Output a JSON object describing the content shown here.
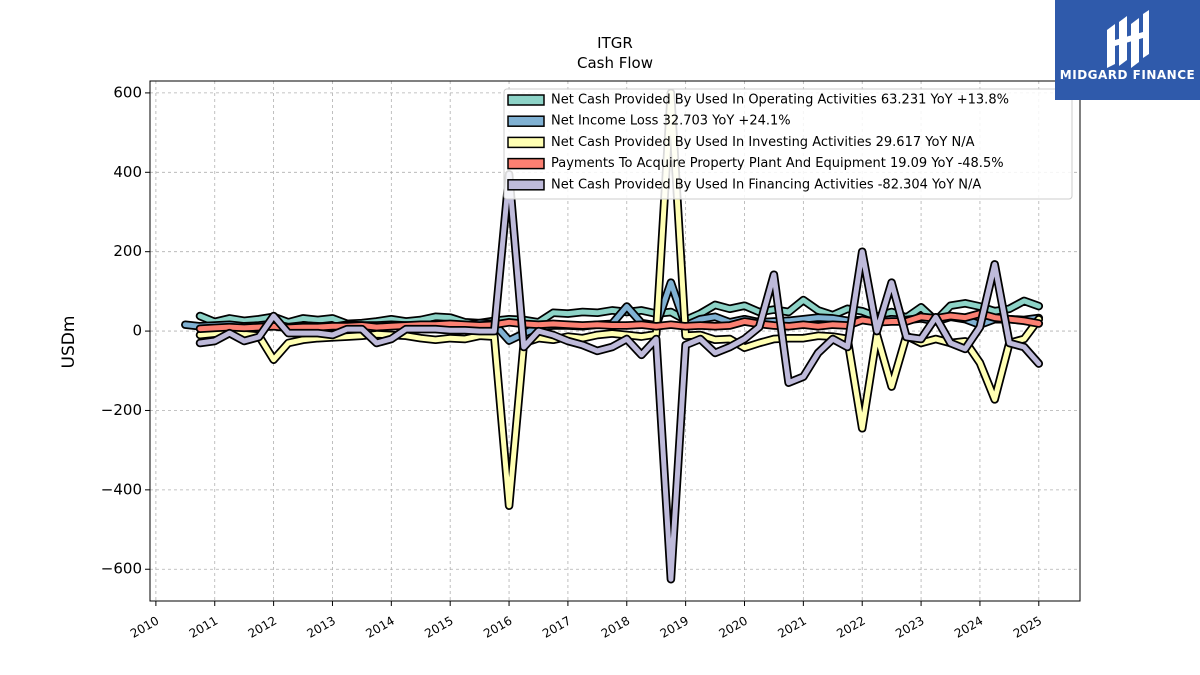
{
  "brand": {
    "name": "MIDGARD FINANCE",
    "background": "#2f5aab"
  },
  "chart_data": {
    "type": "area",
    "title": "ITGR",
    "subtitle": "Cash Flow",
    "ylabel": "USDm",
    "xlim": [
      2009.9,
      2025.7
    ],
    "ylim": [
      -680,
      630
    ],
    "yticks": [
      600,
      400,
      200,
      0,
      -200,
      -400,
      -600
    ],
    "ytick_labels": [
      "600",
      "400",
      "200",
      "0",
      "−200",
      "−400",
      "−600"
    ],
    "xticks": [
      2010,
      2011,
      2012,
      2013,
      2014,
      2015,
      2016,
      2017,
      2018,
      2019,
      2020,
      2021,
      2022,
      2023,
      2024,
      2025
    ],
    "grid": true,
    "legend_position": "top-right",
    "series": [
      {
        "name": "Net Cash Provided By Used In Operating Activities  63.231 YoY +13.8%",
        "color": "#8dd3c7",
        "points": [
          [
            2010.75,
            38
          ],
          [
            2011.0,
            23
          ],
          [
            2011.25,
            32
          ],
          [
            2011.5,
            26
          ],
          [
            2011.75,
            30
          ],
          [
            2012.0,
            36
          ],
          [
            2012.25,
            22
          ],
          [
            2012.5,
            32
          ],
          [
            2012.75,
            28
          ],
          [
            2013.0,
            32
          ],
          [
            2013.25,
            18
          ],
          [
            2013.5,
            20
          ],
          [
            2013.75,
            24
          ],
          [
            2014.0,
            30
          ],
          [
            2014.25,
            24
          ],
          [
            2014.5,
            28
          ],
          [
            2014.75,
            36
          ],
          [
            2015.0,
            34
          ],
          [
            2015.25,
            22
          ],
          [
            2015.5,
            20
          ],
          [
            2015.75,
            26
          ],
          [
            2016.0,
            30
          ],
          [
            2016.25,
            28
          ],
          [
            2016.5,
            22
          ],
          [
            2016.75,
            46
          ],
          [
            2017.0,
            44
          ],
          [
            2017.25,
            48
          ],
          [
            2017.5,
            46
          ],
          [
            2017.75,
            52
          ],
          [
            2018.0,
            48
          ],
          [
            2018.25,
            52
          ],
          [
            2018.5,
            44
          ],
          [
            2018.75,
            48
          ],
          [
            2019.0,
            28
          ],
          [
            2019.25,
            44
          ],
          [
            2019.5,
            66
          ],
          [
            2019.75,
            56
          ],
          [
            2020.0,
            64
          ],
          [
            2020.25,
            48
          ],
          [
            2020.5,
            54
          ],
          [
            2020.75,
            48
          ],
          [
            2021.0,
            78
          ],
          [
            2021.25,
            52
          ],
          [
            2021.5,
            40
          ],
          [
            2021.75,
            56
          ],
          [
            2022.0,
            50
          ],
          [
            2022.25,
            36
          ],
          [
            2022.5,
            48
          ],
          [
            2022.75,
            34
          ],
          [
            2023.0,
            60
          ],
          [
            2023.25,
            26
          ],
          [
            2023.5,
            64
          ],
          [
            2023.75,
            70
          ],
          [
            2024.0,
            62
          ],
          [
            2024.25,
            50
          ],
          [
            2024.5,
            56
          ],
          [
            2024.75,
            76
          ],
          [
            2025.0,
            63
          ]
        ]
      },
      {
        "name": "Net Income Loss  32.703 YoY +24.1%",
        "color": "#80b1d3",
        "points": [
          [
            2010.5,
            16
          ],
          [
            2010.75,
            12
          ],
          [
            2011.0,
            14
          ],
          [
            2011.25,
            16
          ],
          [
            2011.5,
            12
          ],
          [
            2011.75,
            14
          ],
          [
            2012.0,
            18
          ],
          [
            2012.25,
            10
          ],
          [
            2012.5,
            14
          ],
          [
            2012.75,
            12
          ],
          [
            2013.0,
            10
          ],
          [
            2013.25,
            16
          ],
          [
            2013.5,
            14
          ],
          [
            2013.75,
            14
          ],
          [
            2014.0,
            16
          ],
          [
            2014.25,
            14
          ],
          [
            2014.5,
            12
          ],
          [
            2014.75,
            18
          ],
          [
            2015.0,
            16
          ],
          [
            2015.25,
            14
          ],
          [
            2015.5,
            20
          ],
          [
            2015.75,
            18
          ],
          [
            2016.0,
            -24
          ],
          [
            2016.25,
            -6
          ],
          [
            2016.5,
            10
          ],
          [
            2016.75,
            14
          ],
          [
            2017.0,
            14
          ],
          [
            2017.25,
            12
          ],
          [
            2017.5,
            16
          ],
          [
            2017.75,
            18
          ],
          [
            2018.0,
            62
          ],
          [
            2018.25,
            20
          ],
          [
            2018.5,
            14
          ],
          [
            2018.75,
            122
          ],
          [
            2019.0,
            14
          ],
          [
            2019.25,
            30
          ],
          [
            2019.5,
            36
          ],
          [
            2019.75,
            22
          ],
          [
            2020.0,
            30
          ],
          [
            2020.25,
            22
          ],
          [
            2020.5,
            24
          ],
          [
            2020.75,
            26
          ],
          [
            2021.0,
            30
          ],
          [
            2021.25,
            34
          ],
          [
            2021.5,
            32
          ],
          [
            2021.75,
            26
          ],
          [
            2022.0,
            28
          ],
          [
            2022.25,
            24
          ],
          [
            2022.5,
            30
          ],
          [
            2022.75,
            28
          ],
          [
            2023.0,
            32
          ],
          [
            2023.25,
            24
          ],
          [
            2023.5,
            36
          ],
          [
            2023.75,
            30
          ],
          [
            2024.0,
            16
          ],
          [
            2024.25,
            30
          ],
          [
            2024.5,
            30
          ],
          [
            2024.75,
            28
          ],
          [
            2025.0,
            33
          ]
        ]
      },
      {
        "name": "Net Cash Provided By Used In Investing Activities  29.617 YoY N/A",
        "color": "#ffffb3",
        "points": [
          [
            2010.75,
            -10
          ],
          [
            2011.0,
            -6
          ],
          [
            2011.25,
            -4
          ],
          [
            2011.5,
            -8
          ],
          [
            2011.75,
            -12
          ],
          [
            2012.0,
            -72
          ],
          [
            2012.25,
            -30
          ],
          [
            2012.5,
            -22
          ],
          [
            2012.75,
            -18
          ],
          [
            2013.0,
            -16
          ],
          [
            2013.25,
            -14
          ],
          [
            2013.5,
            -12
          ],
          [
            2013.75,
            -8
          ],
          [
            2014.0,
            -10
          ],
          [
            2014.25,
            -12
          ],
          [
            2014.5,
            -18
          ],
          [
            2014.75,
            -22
          ],
          [
            2015.0,
            -18
          ],
          [
            2015.25,
            -20
          ],
          [
            2015.5,
            -12
          ],
          [
            2015.75,
            -14
          ],
          [
            2016.0,
            -440
          ],
          [
            2016.25,
            -30
          ],
          [
            2016.5,
            -18
          ],
          [
            2016.75,
            -22
          ],
          [
            2017.0,
            -14
          ],
          [
            2017.25,
            -18
          ],
          [
            2017.5,
            -10
          ],
          [
            2017.75,
            -6
          ],
          [
            2018.0,
            -10
          ],
          [
            2018.25,
            -14
          ],
          [
            2018.5,
            -8
          ],
          [
            2018.75,
            600
          ],
          [
            2019.0,
            -12
          ],
          [
            2019.25,
            -10
          ],
          [
            2019.5,
            -22
          ],
          [
            2019.75,
            -20
          ],
          [
            2020.0,
            -42
          ],
          [
            2020.25,
            -30
          ],
          [
            2020.5,
            -20
          ],
          [
            2020.75,
            -18
          ],
          [
            2021.0,
            -18
          ],
          [
            2021.25,
            -12
          ],
          [
            2021.5,
            -14
          ],
          [
            2021.75,
            -20
          ],
          [
            2022.0,
            -245
          ],
          [
            2022.25,
            -10
          ],
          [
            2022.5,
            -140
          ],
          [
            2022.75,
            -12
          ],
          [
            2023.0,
            -30
          ],
          [
            2023.25,
            -20
          ],
          [
            2023.5,
            -30
          ],
          [
            2023.75,
            -26
          ],
          [
            2024.0,
            -80
          ],
          [
            2024.25,
            -172
          ],
          [
            2024.5,
            -30
          ],
          [
            2024.75,
            -20
          ],
          [
            2025.0,
            30
          ]
        ]
      },
      {
        "name": "Payments To Acquire Property Plant And Equipment  19.09 YoY -48.5%",
        "color": "#fb8072",
        "points": [
          [
            2010.75,
            6
          ],
          [
            2011.0,
            8
          ],
          [
            2011.25,
            10
          ],
          [
            2011.5,
            8
          ],
          [
            2011.75,
            10
          ],
          [
            2012.0,
            12
          ],
          [
            2012.25,
            8
          ],
          [
            2012.5,
            10
          ],
          [
            2012.75,
            10
          ],
          [
            2013.0,
            12
          ],
          [
            2013.25,
            12
          ],
          [
            2013.5,
            14
          ],
          [
            2013.75,
            10
          ],
          [
            2014.0,
            12
          ],
          [
            2014.25,
            14
          ],
          [
            2014.5,
            16
          ],
          [
            2014.75,
            16
          ],
          [
            2015.0,
            18
          ],
          [
            2015.25,
            16
          ],
          [
            2015.5,
            14
          ],
          [
            2015.75,
            16
          ],
          [
            2016.0,
            22
          ],
          [
            2016.25,
            18
          ],
          [
            2016.5,
            16
          ],
          [
            2016.75,
            18
          ],
          [
            2017.0,
            16
          ],
          [
            2017.25,
            14
          ],
          [
            2017.5,
            16
          ],
          [
            2017.75,
            14
          ],
          [
            2018.0,
            14
          ],
          [
            2018.25,
            16
          ],
          [
            2018.5,
            12
          ],
          [
            2018.75,
            16
          ],
          [
            2019.0,
            12
          ],
          [
            2019.25,
            14
          ],
          [
            2019.5,
            12
          ],
          [
            2019.75,
            14
          ],
          [
            2020.0,
            24
          ],
          [
            2020.25,
            18
          ],
          [
            2020.5,
            14
          ],
          [
            2020.75,
            12
          ],
          [
            2021.0,
            16
          ],
          [
            2021.25,
            12
          ],
          [
            2021.5,
            16
          ],
          [
            2021.75,
            14
          ],
          [
            2022.0,
            28
          ],
          [
            2022.25,
            22
          ],
          [
            2022.5,
            24
          ],
          [
            2022.75,
            24
          ],
          [
            2023.0,
            36
          ],
          [
            2023.25,
            32
          ],
          [
            2023.5,
            38
          ],
          [
            2023.75,
            34
          ],
          [
            2024.0,
            44
          ],
          [
            2024.25,
            34
          ],
          [
            2024.5,
            30
          ],
          [
            2024.75,
            26
          ],
          [
            2025.0,
            19
          ]
        ]
      },
      {
        "name": "Net Cash Provided By Used In Financing Activities  -82.304 YoY N/A",
        "color": "#bebada",
        "points": [
          [
            2010.75,
            -30
          ],
          [
            2011.0,
            -25
          ],
          [
            2011.25,
            -5
          ],
          [
            2011.5,
            -25
          ],
          [
            2011.75,
            -15
          ],
          [
            2012.0,
            38
          ],
          [
            2012.25,
            -5
          ],
          [
            2012.5,
            -5
          ],
          [
            2012.75,
            -5
          ],
          [
            2013.0,
            -10
          ],
          [
            2013.25,
            5
          ],
          [
            2013.5,
            5
          ],
          [
            2013.75,
            -30
          ],
          [
            2014.0,
            -20
          ],
          [
            2014.25,
            5
          ],
          [
            2014.5,
            5
          ],
          [
            2014.75,
            5
          ],
          [
            2015.0,
            2
          ],
          [
            2015.25,
            2
          ],
          [
            2015.5,
            0
          ],
          [
            2015.75,
            0
          ],
          [
            2016.0,
            395
          ],
          [
            2016.25,
            -40
          ],
          [
            2016.5,
            0
          ],
          [
            2016.75,
            -10
          ],
          [
            2017.0,
            -25
          ],
          [
            2017.25,
            -35
          ],
          [
            2017.5,
            -50
          ],
          [
            2017.75,
            -40
          ],
          [
            2018.0,
            -20
          ],
          [
            2018.25,
            -60
          ],
          [
            2018.5,
            -20
          ],
          [
            2018.75,
            -625
          ],
          [
            2019.0,
            -35
          ],
          [
            2019.25,
            -20
          ],
          [
            2019.5,
            -55
          ],
          [
            2019.75,
            -40
          ],
          [
            2020.0,
            -20
          ],
          [
            2020.25,
            10
          ],
          [
            2020.5,
            142
          ],
          [
            2020.75,
            -130
          ],
          [
            2021.0,
            -115
          ],
          [
            2021.25,
            -55
          ],
          [
            2021.5,
            -20
          ],
          [
            2021.75,
            -40
          ],
          [
            2022.0,
            200
          ],
          [
            2022.25,
            0
          ],
          [
            2022.5,
            122
          ],
          [
            2022.75,
            -15
          ],
          [
            2023.0,
            -20
          ],
          [
            2023.25,
            35
          ],
          [
            2023.5,
            -30
          ],
          [
            2023.75,
            -45
          ],
          [
            2024.0,
            10
          ],
          [
            2024.25,
            168
          ],
          [
            2024.5,
            -30
          ],
          [
            2024.75,
            -40
          ],
          [
            2025.0,
            -82
          ]
        ]
      }
    ]
  }
}
